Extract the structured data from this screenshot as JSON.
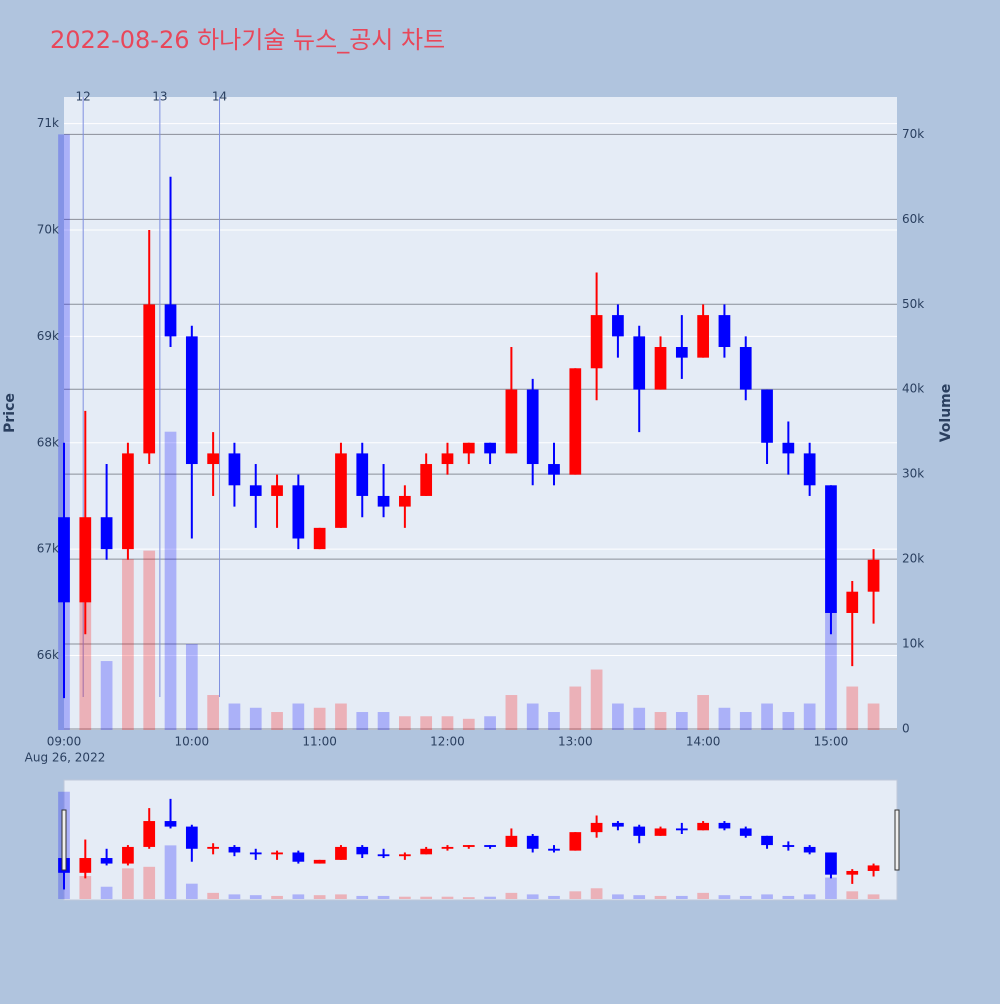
{
  "chart_data": {
    "type": "candlestick",
    "title": "2022-08-26 하나기술 뉴스_공시 차트",
    "y_title": "Price",
    "y2_title": "Volume",
    "x_date_label": "Aug 26, 2022",
    "increasing_color": "#ff0000",
    "decreasing_color": "#0000ff",
    "x": [
      "2022-08-26 09:00",
      "2022-08-26 09:10",
      "2022-08-26 09:20",
      "2022-08-26 09:30",
      "2022-08-26 09:40",
      "2022-08-26 09:50",
      "2022-08-26 10:00",
      "2022-08-26 10:10",
      "2022-08-26 10:20",
      "2022-08-26 10:30",
      "2022-08-26 10:40",
      "2022-08-26 10:50",
      "2022-08-26 11:00",
      "2022-08-26 11:10",
      "2022-08-26 11:20",
      "2022-08-26 11:30",
      "2022-08-26 11:40",
      "2022-08-26 11:50",
      "2022-08-26 12:00",
      "2022-08-26 12:10",
      "2022-08-26 12:20",
      "2022-08-26 12:30",
      "2022-08-26 12:40",
      "2022-08-26 12:50",
      "2022-08-26 13:00",
      "2022-08-26 13:10",
      "2022-08-26 13:20",
      "2022-08-26 13:30",
      "2022-08-26 13:40",
      "2022-08-26 13:50",
      "2022-08-26 14:00",
      "2022-08-26 14:10",
      "2022-08-26 14:20",
      "2022-08-26 14:30",
      "2022-08-26 14:40",
      "2022-08-26 14:50",
      "2022-08-26 15:00",
      "2022-08-26 15:10",
      "2022-08-26 15:20"
    ],
    "open": [
      67300,
      66500,
      67300,
      67000,
      67900,
      69300,
      69000,
      67800,
      67900,
      67600,
      67500,
      67600,
      67000,
      67200,
      67900,
      67500,
      67400,
      67500,
      67800,
      67900,
      68000,
      67900,
      68500,
      67800,
      67700,
      68700,
      69200,
      69000,
      68500,
      68900,
      68800,
      69200,
      68900,
      68500,
      68000,
      67900,
      67600,
      66400,
      66600
    ],
    "high": [
      68000,
      68300,
      67800,
      68000,
      70000,
      70500,
      69100,
      68100,
      68000,
      67800,
      67700,
      67700,
      67200,
      68000,
      68000,
      67800,
      67600,
      67900,
      68000,
      68000,
      68000,
      68900,
      68600,
      68000,
      68700,
      69600,
      69300,
      69100,
      69000,
      69200,
      69300,
      69300,
      69000,
      68500,
      68200,
      68000,
      67600,
      66700,
      67000
    ],
    "low": [
      65600,
      66200,
      66900,
      66900,
      67800,
      68900,
      67100,
      67500,
      67400,
      67200,
      67200,
      67000,
      67000,
      67200,
      67300,
      67300,
      67200,
      67500,
      67700,
      67800,
      67800,
      67900,
      67600,
      67600,
      67700,
      68400,
      68800,
      68100,
      68500,
      68600,
      68800,
      68800,
      68400,
      67800,
      67700,
      67500,
      66200,
      65900,
      66300
    ],
    "close": [
      66500,
      67300,
      67000,
      67900,
      69300,
      69000,
      67800,
      67900,
      67600,
      67500,
      67600,
      67100,
      67200,
      67900,
      67500,
      67400,
      67500,
      67800,
      67900,
      68000,
      67900,
      68500,
      67800,
      67700,
      68700,
      69200,
      69000,
      68500,
      68900,
      68800,
      69200,
      68900,
      68500,
      68000,
      67900,
      67600,
      66400,
      66600,
      66900
    ],
    "volume": [
      70000,
      15000,
      8000,
      20000,
      21000,
      35000,
      10000,
      4000,
      3000,
      2500,
      2000,
      3000,
      2500,
      3000,
      2000,
      2000,
      1500,
      1500,
      1500,
      1200,
      1500,
      4000,
      3000,
      2000,
      5000,
      7000,
      3000,
      2500,
      2000,
      2000,
      4000,
      2500,
      2000,
      3000,
      2000,
      3000,
      14000,
      5000,
      3000
    ],
    "xlim": [
      "2022-08-26 09:00",
      "2022-08-26 15:31"
    ],
    "xticks": [
      {
        "value": "2022-08-26 09:00",
        "label": "09:00"
      },
      {
        "value": "2022-08-26 10:00",
        "label": "10:00"
      },
      {
        "value": "2022-08-26 11:00",
        "label": "11:00"
      },
      {
        "value": "2022-08-26 12:00",
        "label": "12:00"
      },
      {
        "value": "2022-08-26 13:00",
        "label": "13:00"
      },
      {
        "value": "2022-08-26 14:00",
        "label": "14:00"
      },
      {
        "value": "2022-08-26 15:00",
        "label": "15:00"
      }
    ],
    "ylim": [
      65300,
      71250
    ],
    "yticks": [
      {
        "value": 66000,
        "label": "66k"
      },
      {
        "value": 67000,
        "label": "67k"
      },
      {
        "value": 68000,
        "label": "68k"
      },
      {
        "value": 69000,
        "label": "69k"
      },
      {
        "value": 70000,
        "label": "70k"
      },
      {
        "value": 71000,
        "label": "71k"
      }
    ],
    "y2lim": [
      0,
      74400
    ],
    "y2ticks": [
      0,
      {
        "value": 10000,
        "label": "10k"
      },
      {
        "value": 20000,
        "label": "20k"
      },
      {
        "value": 30000,
        "label": "30k"
      },
      {
        "value": 40000,
        "label": "40k"
      },
      {
        "value": 50000,
        "label": "50k"
      },
      {
        "value": 60000,
        "label": "60k"
      },
      {
        "value": 70000,
        "label": "70k"
      }
    ],
    "news_markers": [
      {
        "x": "2022-08-26 09:09",
        "label": "12"
      },
      {
        "x": "2022-08-26 09:45",
        "label": "13"
      },
      {
        "x": "2022-08-26 10:13",
        "label": "14"
      }
    ],
    "range_slider": true
  }
}
